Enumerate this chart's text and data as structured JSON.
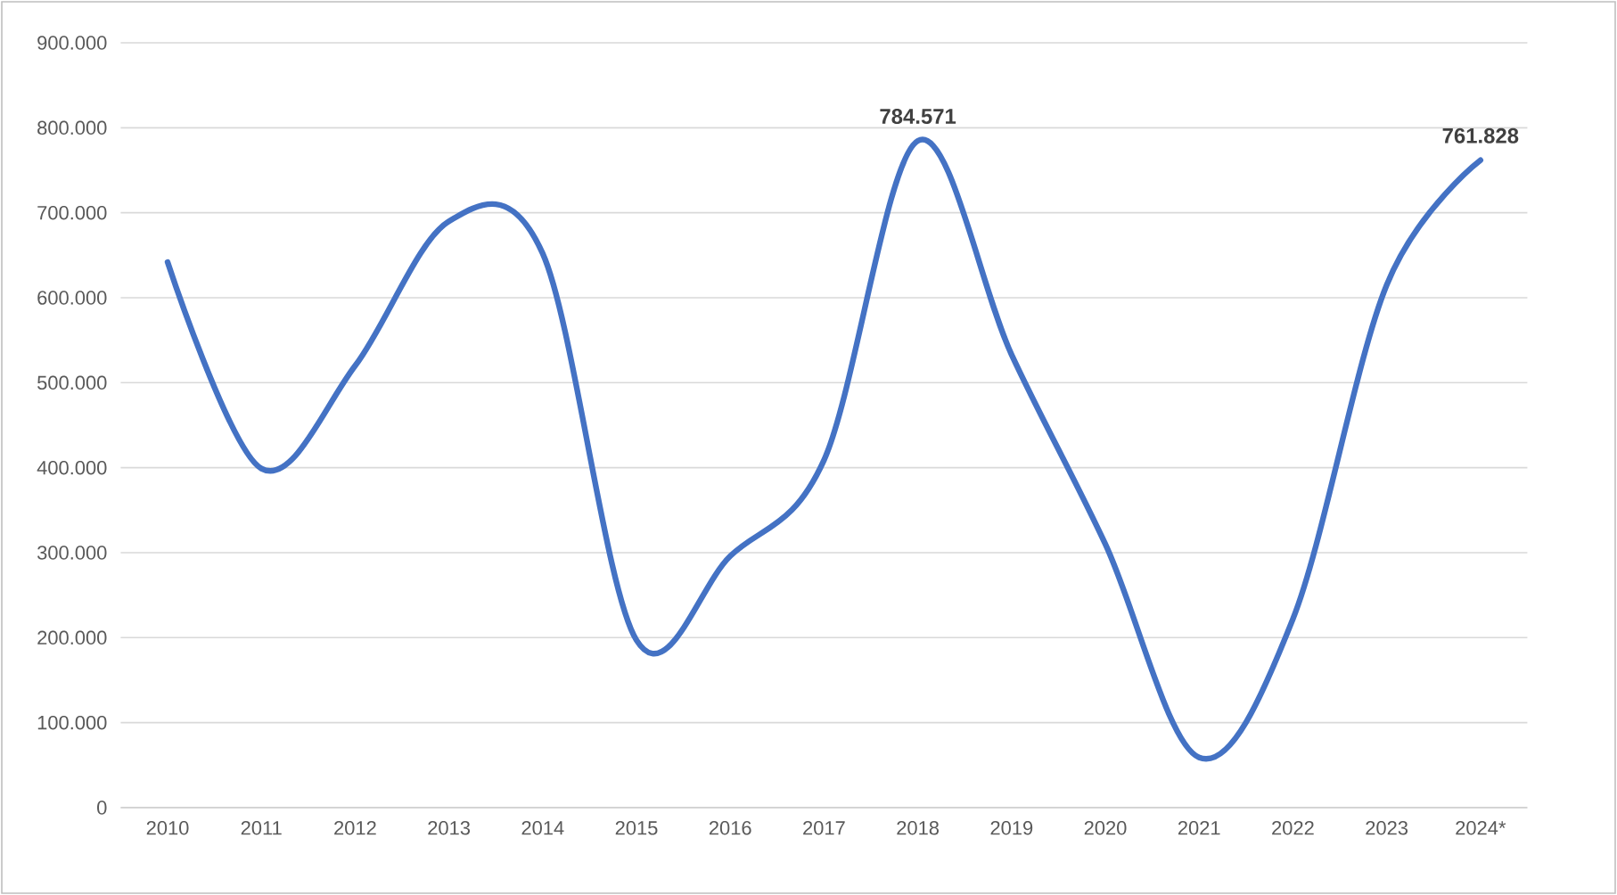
{
  "chart_data": {
    "type": "line",
    "categories": [
      "2010",
      "2011",
      "2012",
      "2013",
      "2014",
      "2015",
      "2016",
      "2017",
      "2018",
      "2019",
      "2020",
      "2021",
      "2022",
      "2023",
      "2024*"
    ],
    "series": [
      {
        "color": "#4472c4",
        "values": [
          642000,
          399000,
          520000,
          690000,
          652000,
          197000,
          296000,
          409000,
          784571,
          533000,
          310000,
          59000,
          222000,
          615000,
          761828
        ],
        "value_labels": [
          null,
          null,
          null,
          null,
          null,
          null,
          null,
          null,
          "784.571",
          null,
          null,
          null,
          null,
          null,
          "761.828"
        ]
      }
    ],
    "ylim": [
      0,
      900000
    ],
    "yticks": [
      {
        "value": 0,
        "label": "0"
      },
      {
        "value": 100000,
        "label": "100.000"
      },
      {
        "value": 200000,
        "label": "200.000"
      },
      {
        "value": 300000,
        "label": "300.000"
      },
      {
        "value": 400000,
        "label": "400.000"
      },
      {
        "value": 500000,
        "label": "500.000"
      },
      {
        "value": 600000,
        "label": "600.000"
      },
      {
        "value": 700000,
        "label": "700.000"
      },
      {
        "value": 800000,
        "label": "800.000"
      },
      {
        "value": 900000,
        "label": "900.000"
      }
    ],
    "grid": "y",
    "marker": "none",
    "line_style": "solid"
  }
}
